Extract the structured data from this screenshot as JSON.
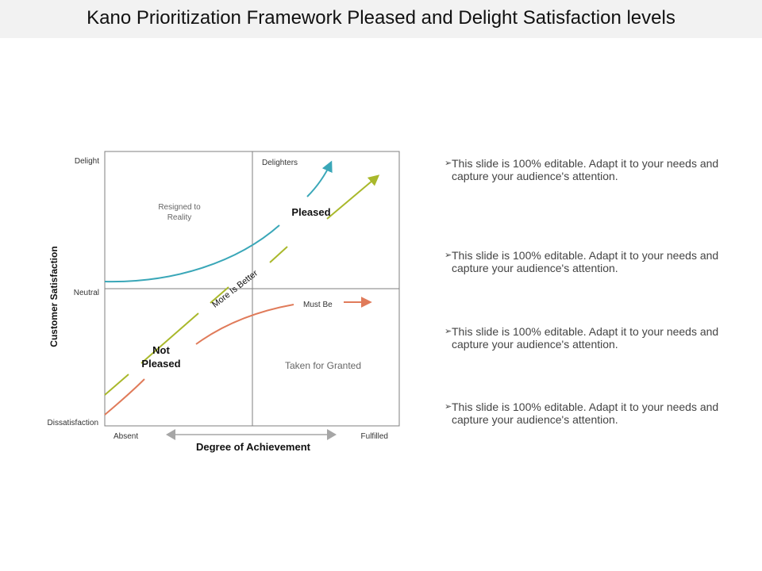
{
  "title": "Kano Prioritization Framework Pleased and Delight Satisfaction levels",
  "diagram": {
    "y_axis": {
      "title": "Customer Satisfaction",
      "top_label": "Delight",
      "middle_label": "Neutral",
      "bottom_label": "Dissatisfaction"
    },
    "x_axis": {
      "title": "Degree of Achievement",
      "left_label": "Absent",
      "right_label": "Fulfilled"
    },
    "quadrants": {
      "top_left": "Resigned to Reality",
      "top_right": "Delighters",
      "bottom_right_title": "Must Be",
      "bottom_right": "Taken for Granted"
    },
    "curves": {
      "pleased": "Pleased",
      "not_pleased": "Not Pleased",
      "more_is_better": "More Is Better"
    },
    "colors": {
      "delighter_curve": "#3aa7b8",
      "performance_line": "#a9b82b",
      "basic_curve": "#e07b5a",
      "grid": "#7f7f7f",
      "axis_arrow": "#a6a6a6"
    }
  },
  "bullets": [
    {
      "marker": "➢",
      "text": "This slide is 100% editable. Adapt it to your needs and capture your audience's attention."
    },
    {
      "marker": "➢",
      "text": "This slide is 100% editable. Adapt it to your needs and capture your audience's attention."
    },
    {
      "marker": "➢",
      "text": "This slide is 100% editable. Adapt it to your needs and capture your audience's attention."
    },
    {
      "marker": "➢",
      "text": "This slide is 100% editable. Adapt it to your needs and capture your audience's attention."
    }
  ]
}
